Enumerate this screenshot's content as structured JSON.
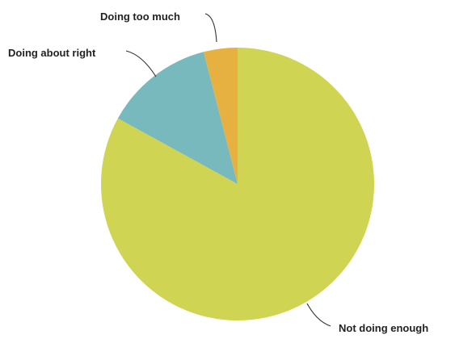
{
  "chart_data": {
    "type": "pie",
    "title": "",
    "start": "12 o'clock, clockwise",
    "legend": "none (direct labels with leader lines)",
    "slices": [
      {
        "label": "Not doing enough",
        "value": 83,
        "color": "#cfd452"
      },
      {
        "label": "Doing about right",
        "value": 13,
        "color": "#77b9bd"
      },
      {
        "label": "Doing too much",
        "value": 4,
        "color": "#e6b140"
      }
    ]
  }
}
